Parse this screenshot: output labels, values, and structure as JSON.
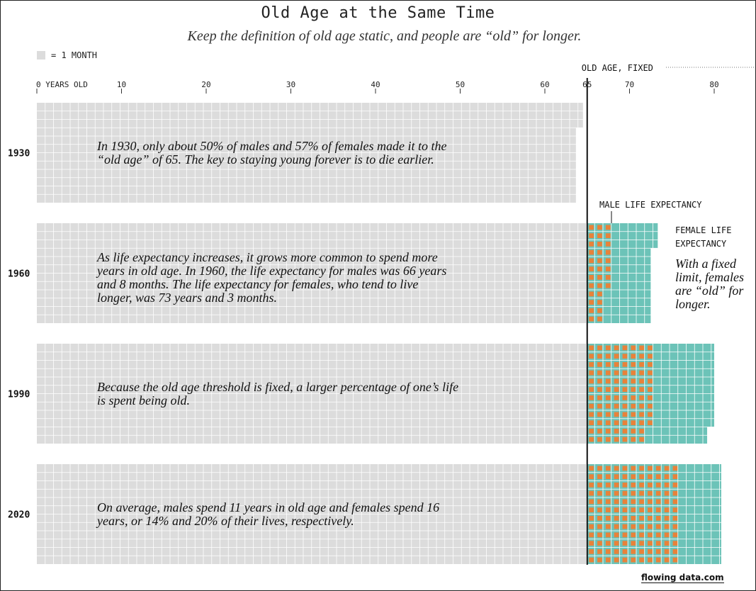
{
  "title": "Old Age at the Same Time",
  "subtitle": "Keep the definition of old age static, and people are “old” for longer.",
  "legend_label": "= 1 MONTH",
  "credit": "flowing data.com",
  "colors": {
    "cell_young": "#dcdcdc",
    "cell_old": "#6cc3b8",
    "male_dot": "#e8823a",
    "threshold_line": "#111111",
    "grid_line": "#ffffff"
  },
  "chart_data": {
    "type": "waffle",
    "unit": "month",
    "x_axis": {
      "ticks": [
        0,
        10,
        20,
        30,
        40,
        50,
        60,
        65,
        70,
        80
      ],
      "tick_labels": [
        "0 YEARS OLD",
        "10",
        "20",
        "30",
        "40",
        "50",
        "60",
        "65",
        "70",
        "80"
      ],
      "range": [
        0,
        85
      ]
    },
    "threshold": {
      "age": 65,
      "label": "OLD AGE, FIXED"
    },
    "annotations": {
      "male_life_expectancy": "MALE LIFE EXPECTANCY",
      "female_life_expectancy": [
        "FEMALE LIFE",
        "EXPECTANCY"
      ],
      "fixed_limit_note": [
        "With a fixed",
        "limit, females",
        "are “old” for",
        "longer."
      ]
    },
    "years": [
      {
        "year": "1930",
        "rows_months": [
          774,
          774,
          774,
          764,
          764,
          764,
          764,
          764,
          764,
          764,
          764,
          764
        ],
        "male_months_after_65": 0,
        "note": [
          "In 1930, only about 50% of males and 57% of females made it to the",
          "“old age” of 65. The key to staying young forever is to die earlier."
        ]
      },
      {
        "year": "1960",
        "rows_months": [
          880,
          880,
          880,
          870,
          870,
          870,
          870,
          870,
          870,
          870,
          870,
          870
        ],
        "male_months_after_65": [
          3,
          3,
          3,
          3,
          3,
          3,
          3,
          3,
          2,
          2,
          2,
          2
        ],
        "note": [
          "As life expectancy increases, it grows more common to spend more",
          "years in old age. In 1960, the life expectancy for males was 66 years",
          "and 8 months. The life expectancy for females, who tend to live",
          "longer, was 73 years and 3 months."
        ]
      },
      {
        "year": "1990",
        "rows_months": [
          960,
          960,
          960,
          960,
          960,
          960,
          960,
          960,
          960,
          960,
          950,
          950
        ],
        "male_months_after_65": [
          8,
          8,
          8,
          8,
          8,
          8,
          8,
          8,
          8,
          8,
          7,
          7
        ],
        "note": [
          "Because the old age threshold is fixed, a larger percentage of one’s life",
          "is spent being old."
        ]
      },
      {
        "year": "2020",
        "rows_months": [
          970,
          970,
          970,
          970,
          970,
          970,
          970,
          970,
          970,
          970,
          970,
          970
        ],
        "male_months_after_65": [
          11,
          11,
          11,
          11,
          11,
          11,
          11,
          11,
          11,
          11,
          11,
          11
        ],
        "note": [
          "On average, males spend 11 years in old age and females spend 16",
          "years, or 14% and 20% of their lives, respectively."
        ]
      }
    ]
  }
}
